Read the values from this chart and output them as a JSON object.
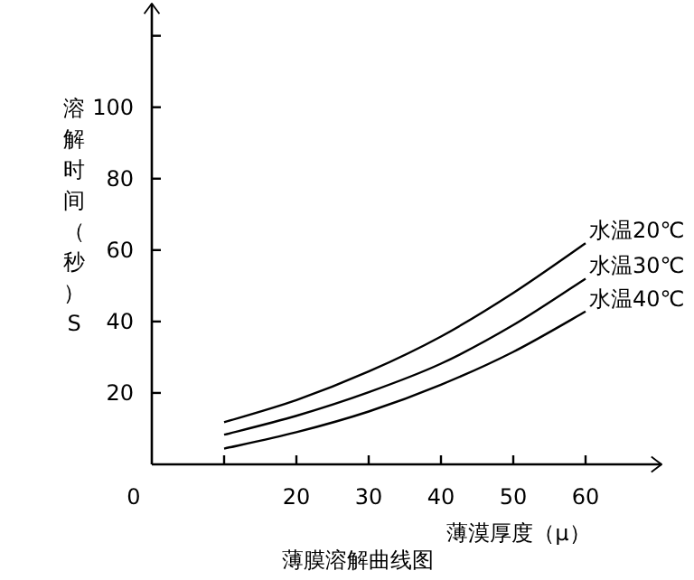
{
  "chart_data": {
    "type": "line",
    "title": "薄膜溶解曲线图",
    "xlabel": "薄漠厚度（μ）",
    "ylabel": "溶解时间（秒）S",
    "x": [
      10,
      20,
      30,
      40,
      50,
      60
    ],
    "xlim": [
      0,
      70
    ],
    "ylim": [
      0,
      128
    ],
    "xticks": [
      0,
      {
        "value": 10,
        "label": null
      },
      20,
      30,
      40,
      50,
      60
    ],
    "yticks": [
      20,
      40,
      60,
      80,
      100,
      {
        "value": 120,
        "label": null
      }
    ],
    "grid": false,
    "legend": false,
    "marker": "none",
    "line_style": "solid",
    "series": [
      {
        "name": "水温20℃",
        "color": "#000000",
        "values": [
          11.8,
          18,
          26,
          35.8,
          48,
          61.9
        ]
      },
      {
        "name": "水温30℃",
        "color": "#000000",
        "values": [
          8.3,
          13.6,
          20.2,
          28.2,
          39,
          52
        ]
      },
      {
        "name": "水温40℃",
        "color": "#000000",
        "values": [
          4.4,
          9,
          14.8,
          22.3,
          31.5,
          42.8
        ]
      }
    ]
  }
}
